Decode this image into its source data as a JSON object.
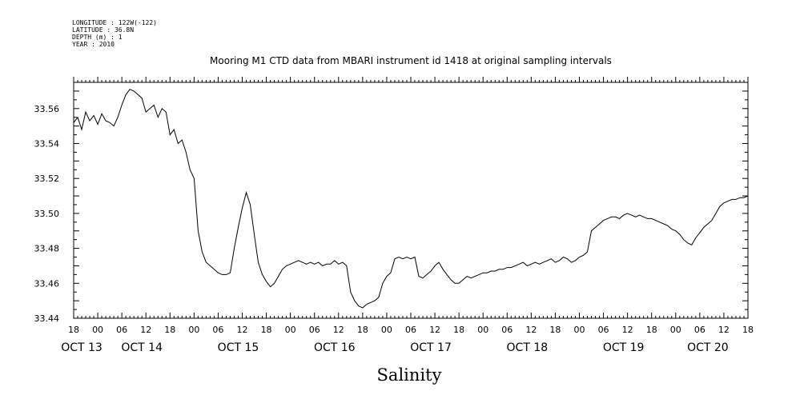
{
  "header": {
    "meta_lines": [
      "LONGITUDE : 122W(-122)",
      "LATITUDE : 36.8N",
      "DEPTH (m) : 1",
      "YEAR : 2010"
    ]
  },
  "chart_data": {
    "type": "line",
    "title": "Mooring M1 CTD data from MBARI instrument id 1418 at original sampling intervals",
    "xlabel": "Salinity",
    "ylabel": "",
    "x_units": "hours since 2010-10-13 18:00",
    "xlim": [
      0,
      168
    ],
    "ylim": [
      33.44,
      33.575
    ],
    "y_ticks": [
      33.44,
      33.46,
      33.48,
      33.5,
      33.52,
      33.54,
      33.56
    ],
    "y_tick_labels": [
      "33.44",
      "33.46",
      "33.48",
      "33.50",
      "33.52",
      "33.54",
      "33.56"
    ],
    "x_tick_labels": [
      "18",
      "00",
      "06",
      "12",
      "18",
      "00",
      "06",
      "12",
      "18",
      "00",
      "06",
      "12",
      "18",
      "00",
      "06",
      "12",
      "18",
      "00",
      "06",
      "12",
      "18",
      "00",
      "06",
      "12",
      "18",
      "00",
      "06",
      "12",
      "18"
    ],
    "x_date_labels": [
      {
        "label": "OCT 13",
        "hour": 2
      },
      {
        "label": "OCT 14",
        "hour": 17
      },
      {
        "label": "OCT 15",
        "hour": 41
      },
      {
        "label": "OCT 16",
        "hour": 65
      },
      {
        "label": "OCT 17",
        "hour": 89
      },
      {
        "label": "OCT 18",
        "hour": 113
      },
      {
        "label": "OCT 19",
        "hour": 137
      },
      {
        "label": "OCT 20",
        "hour": 158
      }
    ],
    "series": [
      {
        "x": [
          0,
          1,
          2,
          3,
          4,
          5,
          6,
          7,
          8,
          9,
          10,
          11,
          12,
          13,
          14,
          15,
          16,
          17,
          18,
          19,
          20,
          21,
          22,
          23,
          24,
          25,
          26,
          27,
          28,
          29,
          30,
          31,
          32,
          33,
          34,
          35,
          36,
          37,
          38,
          39,
          40,
          41,
          42,
          43,
          44,
          45,
          46,
          47,
          48,
          49,
          50,
          51,
          52,
          53,
          54,
          55,
          56,
          57,
          58,
          59,
          60,
          61,
          62,
          63,
          64,
          65,
          66,
          67,
          68,
          69,
          70,
          71,
          72,
          73,
          74,
          75,
          76,
          77,
          78,
          79,
          80,
          81,
          82,
          83,
          84,
          85,
          86,
          87,
          88,
          89,
          90,
          91,
          92,
          93,
          94,
          95,
          96,
          97,
          98,
          99,
          100,
          101,
          102,
          103,
          104,
          105,
          106,
          107,
          108,
          109,
          110,
          111,
          112,
          113,
          114,
          115,
          116,
          117,
          118,
          119,
          120,
          121,
          122,
          123,
          124,
          125,
          126,
          127,
          128,
          129,
          130,
          131,
          132,
          133,
          134,
          135,
          136,
          137,
          138,
          139,
          140,
          141,
          142,
          143,
          144,
          145,
          146,
          147,
          148,
          149,
          150,
          151,
          152,
          153,
          154,
          155,
          156,
          157,
          158,
          159,
          160,
          161,
          162,
          163,
          164,
          165,
          166,
          167,
          168
        ],
        "y": [
          33.552,
          33.555,
          33.548,
          33.558,
          33.553,
          33.556,
          33.551,
          33.557,
          33.553,
          33.552,
          33.55,
          33.555,
          33.562,
          33.568,
          33.571,
          33.57,
          33.568,
          33.566,
          33.558,
          33.56,
          33.562,
          33.555,
          33.56,
          33.558,
          33.545,
          33.548,
          33.54,
          33.542,
          33.535,
          33.525,
          33.52,
          33.49,
          33.478,
          33.472,
          33.47,
          33.468,
          33.466,
          33.465,
          33.465,
          33.466,
          33.48,
          33.492,
          33.503,
          33.512,
          33.505,
          33.488,
          33.472,
          33.465,
          33.461,
          33.458,
          33.46,
          33.464,
          33.468,
          33.47,
          33.471,
          33.472,
          33.473,
          33.472,
          33.471,
          33.472,
          33.471,
          33.472,
          33.47,
          33.471,
          33.471,
          33.473,
          33.471,
          33.472,
          33.47,
          33.455,
          33.45,
          33.447,
          33.446,
          33.448,
          33.449,
          33.45,
          33.452,
          33.46,
          33.464,
          33.466,
          33.474,
          33.475,
          33.474,
          33.475,
          33.474,
          33.475,
          33.464,
          33.463,
          33.465,
          33.467,
          33.47,
          33.472,
          33.468,
          33.465,
          33.462,
          33.46,
          33.46,
          33.462,
          33.464,
          33.463,
          33.464,
          33.465,
          33.466,
          33.466,
          33.467,
          33.467,
          33.468,
          33.468,
          33.469,
          33.469,
          33.47,
          33.471,
          33.472,
          33.47,
          33.471,
          33.472,
          33.471,
          33.472,
          33.473,
          33.474,
          33.472,
          33.473,
          33.475,
          33.474,
          33.472,
          33.473,
          33.475,
          33.476,
          33.478,
          33.49,
          33.492,
          33.494,
          33.496,
          33.497,
          33.498,
          33.498,
          33.497,
          33.499,
          33.5,
          33.499,
          33.498,
          33.499,
          33.498,
          33.497,
          33.497,
          33.496,
          33.495,
          33.494,
          33.493,
          33.491,
          33.49,
          33.488,
          33.485,
          33.483,
          33.482,
          33.486,
          33.489,
          33.492,
          33.494,
          33.496,
          33.5,
          33.504,
          33.506,
          33.507,
          33.508,
          33.508,
          33.509,
          33.509,
          33.51
        ]
      }
    ],
    "grid": false,
    "legend": "none",
    "line_color": "#000000"
  }
}
